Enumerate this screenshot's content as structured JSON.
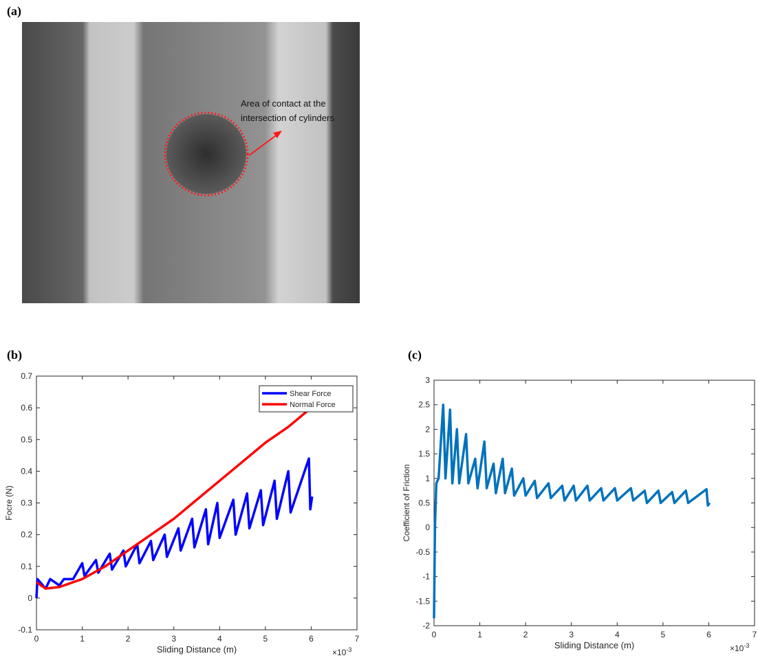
{
  "panel_labels": [
    "(a)",
    "(b)",
    "(c)"
  ],
  "photo": {
    "annotation": [
      "Area of contact at the",
      "intersection of cylinders"
    ]
  },
  "chart_data": [
    {
      "type": "line",
      "ylabel": "Focre (N)",
      "xlabel": "Sliding Distance (m)",
      "x_exponent_base": "×10",
      "x_exponent": "-3",
      "xlim": [
        0,
        7
      ],
      "xticks": [
        0,
        1,
        2,
        3,
        4,
        5,
        6,
        7
      ],
      "ylim": [
        -0.1,
        0.7
      ],
      "yticks": [
        -0.1,
        0,
        0.1,
        0.2,
        0.3,
        0.4,
        0.5,
        0.6,
        0.7
      ],
      "legend": "upper right",
      "series": [
        {
          "name": "Shear Force",
          "color": "#0000ff",
          "x": [
            0,
            0.02,
            0.2,
            0.3,
            0.5,
            0.6,
            0.8,
            1.0,
            1.05,
            1.3,
            1.35,
            1.6,
            1.65,
            1.9,
            1.95,
            2.2,
            2.25,
            2.5,
            2.55,
            2.8,
            2.85,
            3.1,
            3.15,
            3.4,
            3.45,
            3.7,
            3.75,
            3.95,
            4.0,
            4.3,
            4.35,
            4.6,
            4.65,
            4.9,
            4.95,
            5.2,
            5.25,
            5.5,
            5.55,
            5.95,
            5.98,
            6.02
          ],
          "values": [
            0,
            0.06,
            0.03,
            0.06,
            0.04,
            0.06,
            0.06,
            0.11,
            0.07,
            0.12,
            0.08,
            0.14,
            0.09,
            0.15,
            0.1,
            0.17,
            0.11,
            0.18,
            0.12,
            0.2,
            0.13,
            0.22,
            0.15,
            0.25,
            0.16,
            0.28,
            0.17,
            0.3,
            0.19,
            0.31,
            0.2,
            0.33,
            0.22,
            0.34,
            0.23,
            0.37,
            0.25,
            0.4,
            0.27,
            0.44,
            0.28,
            0.32
          ]
        },
        {
          "name": "Normal Force",
          "color": "#ff0000",
          "x": [
            0,
            0.2,
            0.5,
            1,
            1.5,
            2,
            2.5,
            3,
            3.5,
            4,
            4.5,
            5,
            5.5,
            6
          ],
          "values": [
            0.05,
            0.03,
            0.035,
            0.06,
            0.1,
            0.15,
            0.2,
            0.25,
            0.31,
            0.37,
            0.43,
            0.49,
            0.54,
            0.6
          ]
        }
      ]
    },
    {
      "type": "line",
      "ylabel": "Coefficient of Friction",
      "xlabel": "Sliding Distance (m)",
      "x_exponent_base": "×10",
      "x_exponent": "-3",
      "xlim": [
        0,
        7
      ],
      "xticks": [
        0,
        1,
        2,
        3,
        4,
        5,
        6,
        7
      ],
      "ylim": [
        -2,
        3
      ],
      "yticks": [
        -2,
        -1.5,
        -1,
        -0.5,
        0,
        0.5,
        1,
        1.5,
        2,
        2.5,
        3
      ],
      "series": [
        {
          "name": "Coefficient of Friction",
          "color": "#0072bd",
          "x": [
            0,
            0.02,
            0.05,
            0.1,
            0.2,
            0.25,
            0.35,
            0.4,
            0.5,
            0.55,
            0.7,
            0.75,
            0.9,
            0.95,
            1.1,
            1.15,
            1.3,
            1.35,
            1.5,
            1.55,
            1.7,
            1.75,
            1.95,
            2,
            2.2,
            2.25,
            2.5,
            2.55,
            2.8,
            2.85,
            3.05,
            3.1,
            3.35,
            3.4,
            3.65,
            3.7,
            3.95,
            4,
            4.3,
            4.35,
            4.6,
            4.65,
            4.9,
            4.95,
            5.2,
            5.25,
            5.5,
            5.55,
            5.95,
            5.98,
            6.02
          ],
          "values": [
            -1.85,
            0,
            0.9,
            1,
            2.5,
            1,
            2.4,
            0.9,
            2,
            0.9,
            1.9,
            0.9,
            1.4,
            0.8,
            1.75,
            0.8,
            1.3,
            0.7,
            1.4,
            0.7,
            1.2,
            0.65,
            1.0,
            0.65,
            0.95,
            0.6,
            0.9,
            0.6,
            0.85,
            0.55,
            0.85,
            0.55,
            0.85,
            0.55,
            0.8,
            0.55,
            0.8,
            0.55,
            0.8,
            0.55,
            0.75,
            0.5,
            0.75,
            0.5,
            0.72,
            0.5,
            0.75,
            0.5,
            0.78,
            0.45,
            0.5
          ]
        }
      ]
    }
  ]
}
